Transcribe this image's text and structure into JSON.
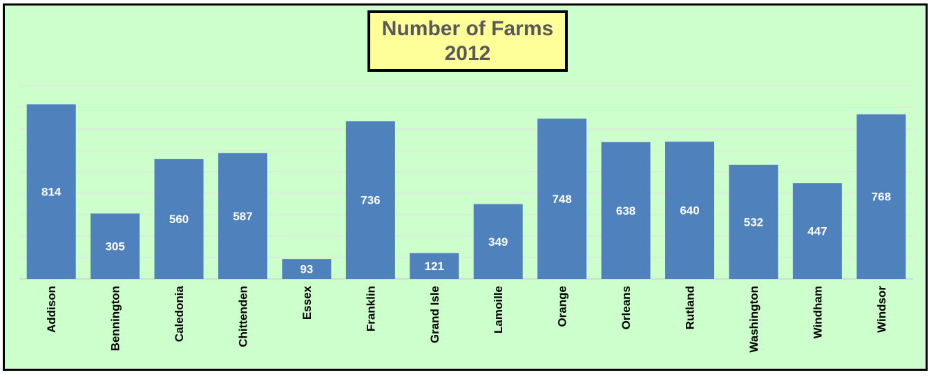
{
  "chart_data": {
    "type": "bar",
    "title_line1": "Number of Farms",
    "title_line2": "2012",
    "categories": [
      "Addison",
      "Bennington",
      "Caledonia",
      "Chittenden",
      "Essex",
      "Franklin",
      "Grand Isle",
      "Lamoille",
      "Orange",
      "Orleans",
      "Rutland",
      "Washington",
      "Windham",
      "Windsor"
    ],
    "values": [
      814,
      305,
      560,
      587,
      93,
      736,
      121,
      349,
      748,
      638,
      640,
      532,
      447,
      768
    ],
    "ylim": [
      0,
      900
    ],
    "grid": true,
    "bar_color": "#4f81bd",
    "background_color": "#ccffcc",
    "title_background": "#ffff99"
  }
}
